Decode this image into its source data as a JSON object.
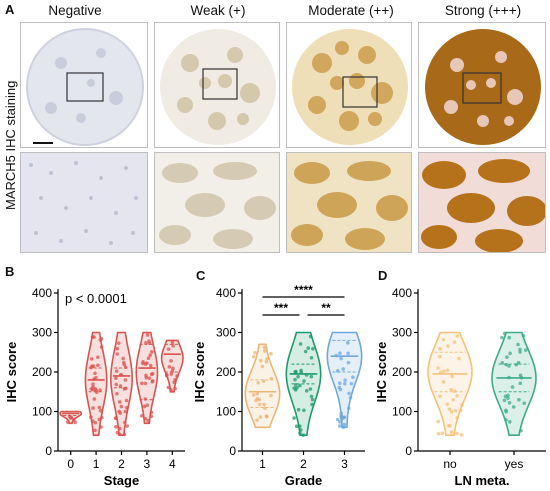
{
  "panelA": {
    "letter": "A",
    "side_label": "MARCH5 IHC staining",
    "columns": [
      "Negative",
      "Weak (+)",
      "Moderate (++)",
      "Strong (+++)"
    ],
    "tile_colors": {
      "Negative": {
        "bg": "#e6e7ef",
        "stain": "#aab0c8"
      },
      "Weak (+)": {
        "bg": "#efe9df",
        "stain": "#c8b898"
      },
      "Moderate (++)": {
        "bg": "#ece0c0",
        "stain": "#caa25a"
      },
      "Strong (+++)": {
        "bg": "#f1dad8",
        "stain": "#b07216"
      }
    }
  },
  "panelB": {
    "letter": "B"
  },
  "panelC": {
    "letter": "C"
  },
  "panelD": {
    "letter": "D"
  },
  "chart_data": [
    {
      "type": "violin",
      "panel": "B",
      "xlabel": "Stage",
      "ylabel": "IHC score",
      "ylim": [
        0,
        400
      ],
      "yticks": [
        0,
        100,
        200,
        300,
        400
      ],
      "annotation": "p < 0.0001",
      "categories": [
        "0",
        "1",
        "2",
        "3",
        "4"
      ],
      "color": "#d9534f",
      "groups": [
        {
          "name": "0",
          "min": 70,
          "max": 100,
          "median": 95,
          "q1": 90,
          "q3": 100
        },
        {
          "name": "1",
          "min": 40,
          "max": 300,
          "median": 180,
          "q1": 150,
          "q3": 210
        },
        {
          "name": "2",
          "min": 40,
          "max": 300,
          "median": 190,
          "q1": 160,
          "q3": 210
        },
        {
          "name": "3",
          "min": 70,
          "max": 300,
          "median": 210,
          "q1": 130,
          "q3": 270
        },
        {
          "name": "4",
          "min": 150,
          "max": 280,
          "median": 245,
          "q1": 200,
          "q3": 270
        }
      ]
    },
    {
      "type": "violin",
      "panel": "C",
      "xlabel": "Grade",
      "ylabel": "IHC score",
      "ylim": [
        0,
        400
      ],
      "yticks": [
        0,
        100,
        200,
        300,
        400
      ],
      "categories": [
        "1",
        "2",
        "3"
      ],
      "colors": [
        "#eab676",
        "#1d9a6c",
        "#6fa8dc"
      ],
      "groups": [
        {
          "name": "1",
          "min": 60,
          "max": 270,
          "median": 150,
          "q1": 110,
          "q3": 180
        },
        {
          "name": "2",
          "min": 40,
          "max": 300,
          "median": 195,
          "q1": 170,
          "q3": 220
        },
        {
          "name": "3",
          "min": 60,
          "max": 300,
          "median": 240,
          "q1": 200,
          "q3": 280
        }
      ],
      "significance": [
        {
          "from": "1",
          "to": "3",
          "label": "****"
        },
        {
          "from": "1",
          "to": "2",
          "label": "***"
        },
        {
          "from": "2",
          "to": "3",
          "label": "**"
        }
      ]
    },
    {
      "type": "violin",
      "panel": "D",
      "xlabel": "LN meta.",
      "ylabel": "IHC score",
      "ylim": [
        0,
        400
      ],
      "yticks": [
        0,
        100,
        200,
        300,
        400
      ],
      "categories": [
        "no",
        "yes"
      ],
      "colors": [
        "#f2c27b",
        "#3dab8a"
      ],
      "groups": [
        {
          "name": "no",
          "min": 40,
          "max": 300,
          "median": 195,
          "q1": 150,
          "q3": 250
        },
        {
          "name": "yes",
          "min": 40,
          "max": 300,
          "median": 185,
          "q1": 150,
          "q3": 220
        }
      ]
    }
  ]
}
